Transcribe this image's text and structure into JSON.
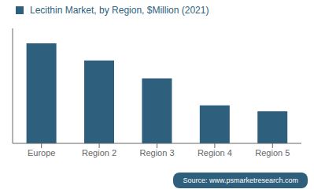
{
  "chart_data": {
    "type": "bar",
    "title": "Lecithin Market, by Region, $Million (2021)",
    "categories": [
      "Europe",
      "Region 2",
      "Region 3",
      "Region 4",
      "Region 5"
    ],
    "values": [
      100,
      83,
      65,
      38,
      32
    ],
    "color": "#2e5f7c",
    "ylim": [
      0,
      115
    ],
    "grid": false,
    "tick_labels": "x",
    "annotations": [
      "Source: www.psmarketresearch.com"
    ]
  }
}
